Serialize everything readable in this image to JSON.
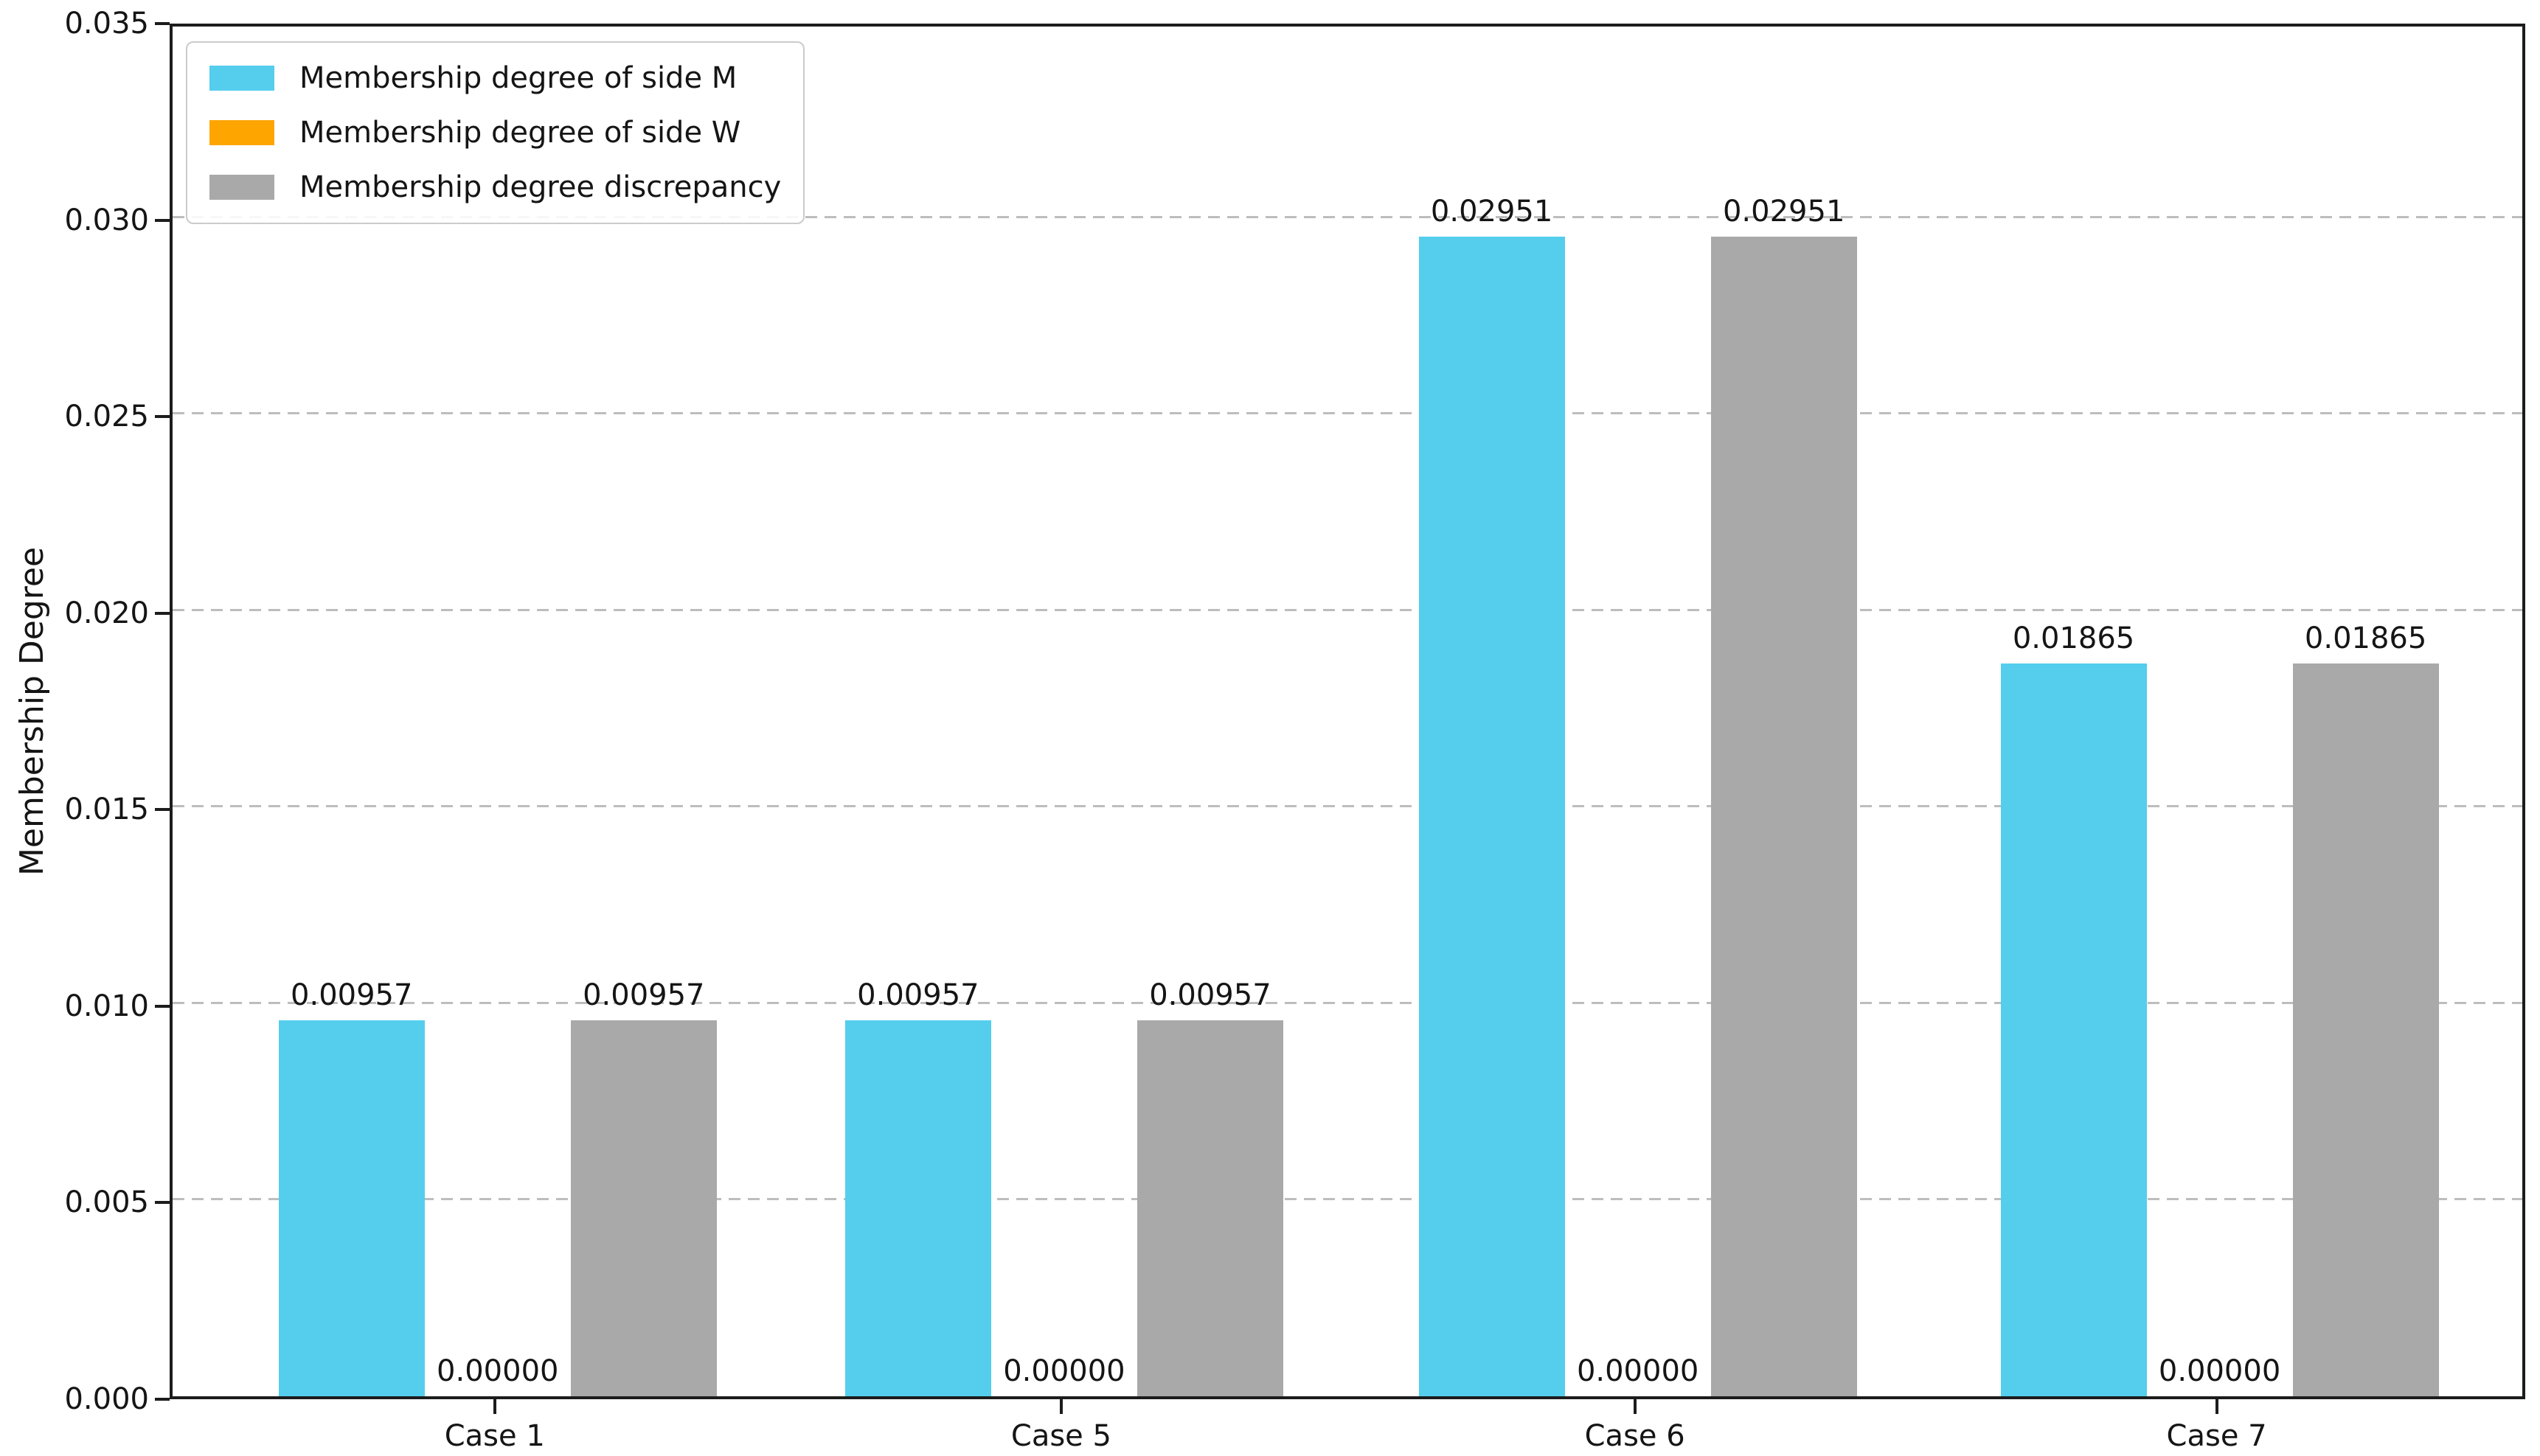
{
  "figure": {
    "background": "#ffffff",
    "text_color": "#151515",
    "spine_color": "#1c1c1c"
  },
  "chart_data": {
    "type": "bar",
    "title": "",
    "xlabel": "",
    "ylabel": "Membership Degree",
    "categories": [
      "Case 1",
      "Case 5",
      "Case 6",
      "Case 7"
    ],
    "series": [
      {
        "key": "side-m",
        "name": "Membership degree of side M",
        "color": "#54CEEC",
        "values": [
          0.00957,
          0.00957,
          0.02951,
          0.01865
        ],
        "labels": [
          "0.00957",
          "0.00957",
          "0.02951",
          "0.01865"
        ]
      },
      {
        "key": "side-w",
        "name": "Membership degree of side W",
        "color": "#FFA500",
        "values": [
          0.0,
          0.0,
          0.0,
          0.0
        ],
        "labels": [
          "0.00000",
          "0.00000",
          "0.00000",
          "0.00000"
        ]
      },
      {
        "key": "discrepancy",
        "name": "Membership degree discrepancy",
        "color": "#A9A9A9",
        "values": [
          0.00957,
          0.00957,
          0.02951,
          0.01865
        ],
        "labels": [
          "0.00957",
          "0.00957",
          "0.02951",
          "0.01865"
        ]
      }
    ],
    "ylim": [
      0,
      0.035
    ],
    "yticks": {
      "values": [
        0,
        0.005,
        0.01,
        0.015,
        0.02,
        0.025,
        0.03,
        0.035
      ],
      "labels": [
        "0.000",
        "0.005",
        "0.010",
        "0.015",
        "0.020",
        "0.025",
        "0.030",
        "0.035"
      ]
    },
    "grid": {
      "axis": "y",
      "style": "dashed",
      "color": "#bdbdbd"
    },
    "legend": {
      "position": "upper left"
    },
    "layout": {
      "group_center_fracs": [
        0.138,
        0.3785,
        0.622,
        0.869
      ],
      "bar_width_frac": 0.062
    }
  }
}
